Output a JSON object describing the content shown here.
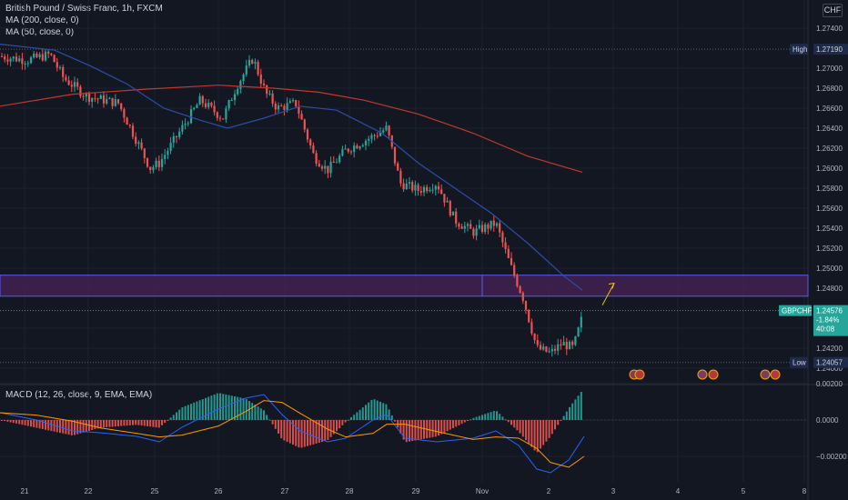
{
  "header": {
    "title": "British Pound / Swiss Franc, 1h, FXCM",
    "ma200_label": "MA (200, close, 0)",
    "ma50_label": "MA (50, close, 0)",
    "currency": "CHF"
  },
  "markers": {
    "high_label": "High",
    "high_value": "1.27190",
    "low_label": "Low",
    "low_value": "1.24057",
    "symbol": "GBPCHF",
    "last_price": "1.24576",
    "change_pct": "-1.84%",
    "countdown": "40:08"
  },
  "macd": {
    "label": "MACD (12, 26, close, 9, EMA, EMA)",
    "ticks": [
      "0.00200",
      "0.0000",
      "−0.00200"
    ]
  },
  "colors": {
    "background": "#131722",
    "candle_up": "#26a69a",
    "candle_down": "#ef5350",
    "ma200": "#c0392b",
    "ma50": "#2d4da8",
    "zone_fill": "#4a235a",
    "zone_border": "#5b5bf0",
    "macd_line": "#2962ff",
    "signal_line": "#ff9800",
    "arrow": "#f0c000"
  },
  "chart_data": {
    "type": "candlestick",
    "price_ticks": [
      "1.27400",
      "1.27000",
      "1.26800",
      "1.26600",
      "1.26400",
      "1.26200",
      "1.26000",
      "1.25800",
      "1.25600",
      "1.25400",
      "1.25200",
      "1.25000",
      "1.24800",
      "1.24400",
      "1.24200",
      "1.24000"
    ],
    "x_ticks": [
      "21",
      "22",
      "25",
      "26",
      "27",
      "28",
      "29",
      "Nov",
      "2",
      "3",
      "4",
      "5",
      "8"
    ],
    "ma200": [
      [
        0,
        1.2662
      ],
      [
        80,
        1.2674
      ],
      [
        160,
        1.2679
      ],
      [
        240,
        1.2683
      ],
      [
        300,
        1.268
      ],
      [
        350,
        1.2676
      ],
      [
        400,
        1.2668
      ],
      [
        460,
        1.2654
      ],
      [
        520,
        1.2635
      ],
      [
        580,
        1.2612
      ],
      [
        640,
        1.2596
      ]
    ],
    "ma50": [
      [
        0,
        1.2724
      ],
      [
        60,
        1.2718
      ],
      [
        100,
        1.2702
      ],
      [
        140,
        1.2684
      ],
      [
        180,
        1.266
      ],
      [
        220,
        1.2648
      ],
      [
        250,
        1.264
      ],
      [
        290,
        1.265
      ],
      [
        330,
        1.2662
      ],
      [
        370,
        1.2658
      ],
      [
        420,
        1.2635
      ],
      [
        460,
        1.2605
      ],
      [
        500,
        1.258
      ],
      [
        540,
        1.2555
      ],
      [
        580,
        1.2525
      ],
      [
        620,
        1.2492
      ],
      [
        640,
        1.2478
      ]
    ],
    "zone": {
      "low": 1.2472,
      "high": 1.2493
    },
    "projection": {
      "from": [
        662,
        1.2463
      ],
      "to": [
        675,
        1.2485
      ]
    },
    "candles": [],
    "macd_histogram_range": [
      -0.0018,
      0.0012
    ]
  }
}
